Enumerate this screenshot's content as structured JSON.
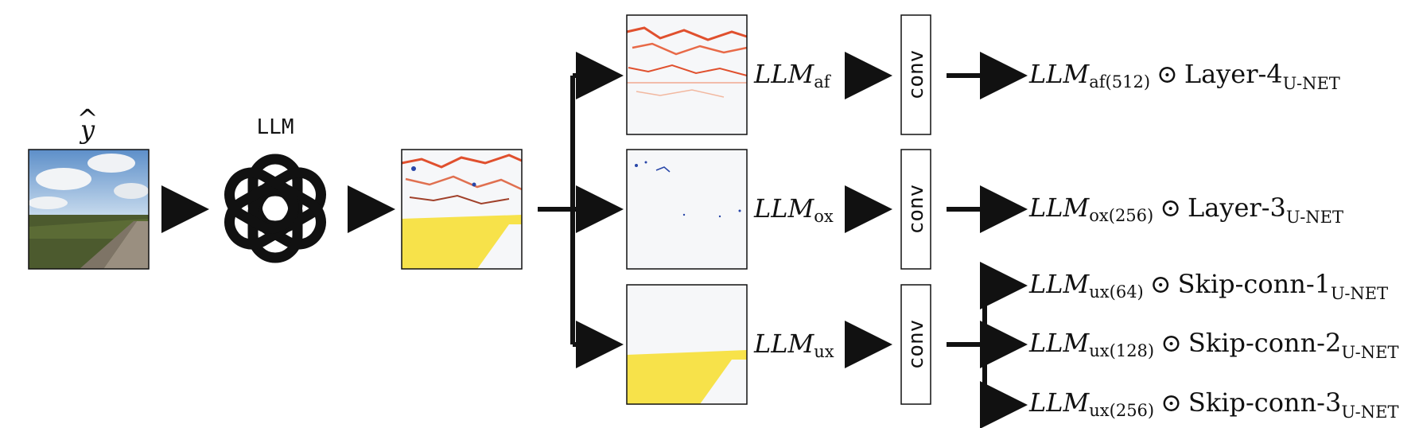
{
  "input": {
    "label_base": "y",
    "label_hat": "^"
  },
  "llm": {
    "label": "LLM",
    "logo": "openai-knot-icon"
  },
  "conv_label": "conv",
  "branches": [
    {
      "base": "LLM",
      "sub": "af",
      "dot": "⊙"
    },
    {
      "base": "LLM",
      "sub": "ox",
      "dot": "⊙"
    },
    {
      "base": "LLM",
      "sub": "ux",
      "dot": "⊙"
    }
  ],
  "outputs": [
    {
      "base": "LLM",
      "sub": "af(512)",
      "op": "⊙",
      "name": "Layer-4",
      "name_sub": "U-NET"
    },
    {
      "base": "LLM",
      "sub": "ox(256)",
      "op": "⊙",
      "name": "Layer-3",
      "name_sub": "U-NET"
    },
    {
      "base": "LLM",
      "sub": "ux(64)",
      "op": "⊙",
      "name": "Skip-conn-1",
      "name_sub": "U-NET"
    },
    {
      "base": "LLM",
      "sub": "ux(128)",
      "op": "⊙",
      "name": "Skip-conn-2",
      "name_sub": "U-NET"
    },
    {
      "base": "LLM",
      "sub": "ux(256)",
      "op": "⊙",
      "name": "Skip-conn-3",
      "name_sub": "U-NET"
    }
  ],
  "colors": {
    "arrow": "#111111",
    "red_map": "#e0502e",
    "blue_map": "#2846a8",
    "yellow_map": "#f7e24a"
  }
}
